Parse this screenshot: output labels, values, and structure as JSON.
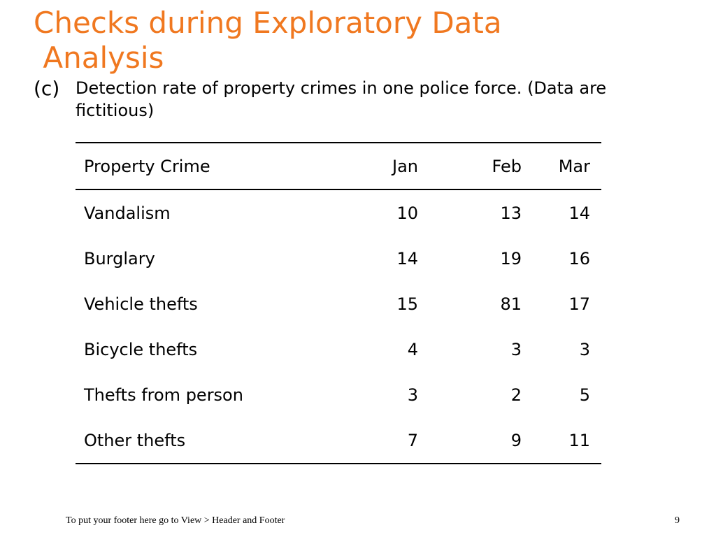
{
  "slide": {
    "title_lines": [
      "Checks during Exploratory Data",
      " Analysis"
    ],
    "subtitle_marker": "(c)",
    "subtitle_text": "Detection rate of property crimes in one police force. (Data are fictitious)",
    "accent_color": "#f07820"
  },
  "table": {
    "headers": [
      "Property Crime",
      "Jan",
      "Feb",
      "Mar"
    ],
    "rows": [
      [
        "Vandalism",
        "10",
        "13",
        "14"
      ],
      [
        "Burglary",
        "14",
        "19",
        "16"
      ],
      [
        "Vehicle thefts",
        "15",
        "81",
        "17"
      ],
      [
        "Bicycle thefts",
        "4",
        "3",
        "3"
      ],
      [
        "Thefts from person",
        "3",
        "2",
        "5"
      ],
      [
        "Other thefts",
        "7",
        "9",
        "11"
      ]
    ]
  },
  "footer": {
    "text": "To put your footer here go to View > Header and Footer",
    "page_number": "9"
  }
}
